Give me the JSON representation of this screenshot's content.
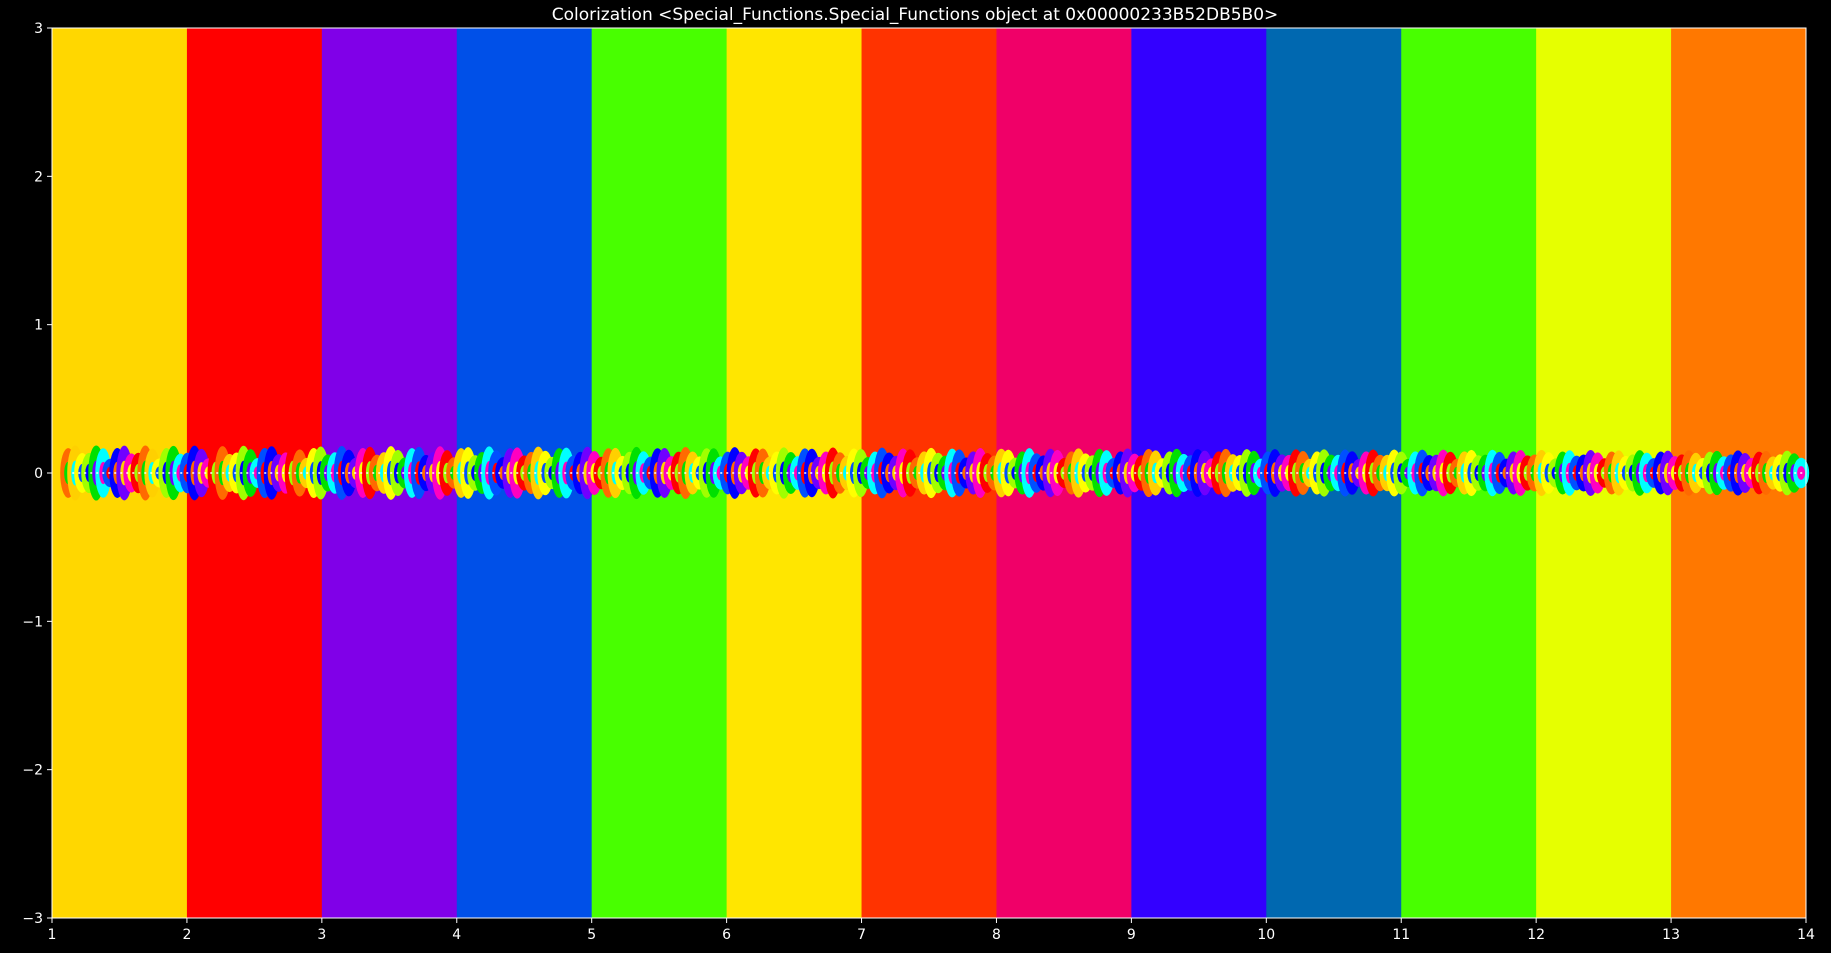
{
  "chart_data": {
    "type": "heatmap",
    "title": "Colorization <Special_Functions.Special_Functions object at 0x00000233B52DB5B0>",
    "xlabel": "",
    "ylabel": "",
    "xlim": [
      1,
      14
    ],
    "ylim": [
      -3,
      3
    ],
    "grid": false,
    "x_ticks": [
      1,
      2,
      3,
      4,
      5,
      6,
      7,
      8,
      9,
      10,
      11,
      12,
      13,
      14
    ],
    "y_ticks": [
      3,
      2,
      1,
      0,
      -1,
      -2,
      -3
    ],
    "x_tick_labels": [
      "1",
      "2",
      "3",
      "4",
      "5",
      "6",
      "7",
      "8",
      "9",
      "10",
      "11",
      "12",
      "13",
      "14"
    ],
    "y_tick_labels": [
      "3",
      "2",
      "1",
      "0",
      "−1",
      "−2",
      "−3"
    ],
    "background_color": "#000000",
    "text_color": "#ffffff",
    "bands": [
      {
        "x0": 1,
        "x1": 2,
        "color": "#ffd700"
      },
      {
        "x0": 2,
        "x1": 3,
        "color": "#ff0000"
      },
      {
        "x0": 3,
        "x1": 4,
        "color": "#8000e8"
      },
      {
        "x0": 4,
        "x1": 5,
        "color": "#0050e8"
      },
      {
        "x0": 5,
        "x1": 6,
        "color": "#48ff00"
      },
      {
        "x0": 6,
        "x1": 7,
        "color": "#ffe600"
      },
      {
        "x0": 7,
        "x1": 8,
        "color": "#ff3300"
      },
      {
        "x0": 8,
        "x1": 9,
        "color": "#f00068"
      },
      {
        "x0": 9,
        "x1": 10,
        "color": "#3300ff"
      },
      {
        "x0": 10,
        "x1": 11,
        "color": "#0068b0"
      },
      {
        "x0": 11,
        "x1": 12,
        "color": "#48ff00"
      },
      {
        "x0": 12,
        "x1": 13,
        "color": "#e6ff00"
      },
      {
        "x0": 13,
        "x1": 14,
        "color": "#ff7800"
      }
    ],
    "stripe_palette": [
      "#ff0000",
      "#ff6a00",
      "#ffd000",
      "#ffff00",
      "#a0ff00",
      "#00e000",
      "#00ffff",
      "#0050ff",
      "#0000ff",
      "#7000ff",
      "#ff00c0"
    ],
    "zero_line_y": 0
  }
}
